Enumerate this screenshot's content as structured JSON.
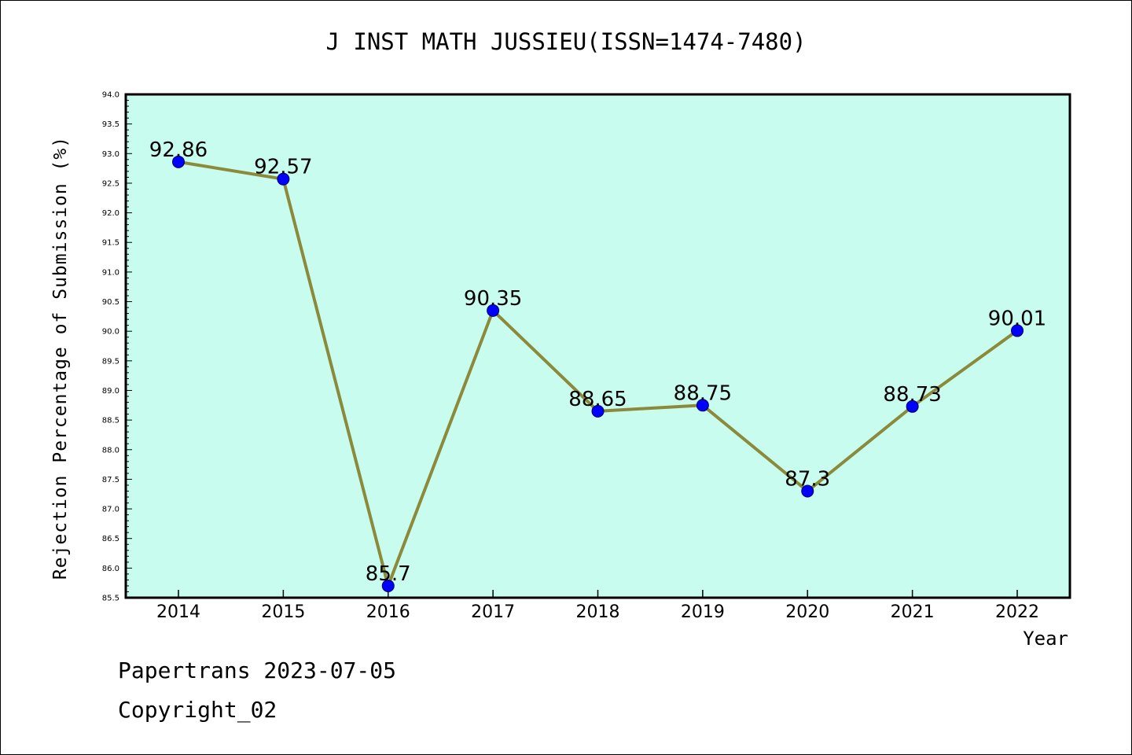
{
  "chart_data": {
    "type": "line",
    "title": "J INST MATH JUSSIEU(ISSN=1474-7480)",
    "xlabel": "Year",
    "ylabel": "Rejection Percentage of Submission (%)",
    "x": [
      "2014",
      "2015",
      "2016",
      "2017",
      "2018",
      "2019",
      "2020",
      "2021",
      "2022"
    ],
    "series": [
      {
        "values": [
          92.86,
          92.57,
          85.7,
          90.35,
          88.65,
          88.75,
          87.3,
          88.73,
          90.01
        ],
        "labels": [
          "92.86",
          "92.57",
          "85.7",
          "90.35",
          "88.65",
          "88.75",
          "87.3",
          "88.73",
          "90.01"
        ]
      }
    ],
    "ylim": [
      85.5,
      94.0
    ],
    "yticks": [
      "85.5",
      "86.0",
      "86.5",
      "87.0",
      "87.5",
      "88.0",
      "88.5",
      "89.0",
      "89.5",
      "90.0",
      "90.5",
      "91.0",
      "91.5",
      "92.0",
      "92.5",
      "93.0",
      "93.5",
      "94.0"
    ],
    "grid": false,
    "colors": {
      "plot_background": "#c8fcee",
      "line": "#8b8a3a",
      "marker": "#0000ff"
    }
  },
  "footer": {
    "line1": "Papertrans 2023-07-05",
    "line2": "Copyright_02"
  }
}
